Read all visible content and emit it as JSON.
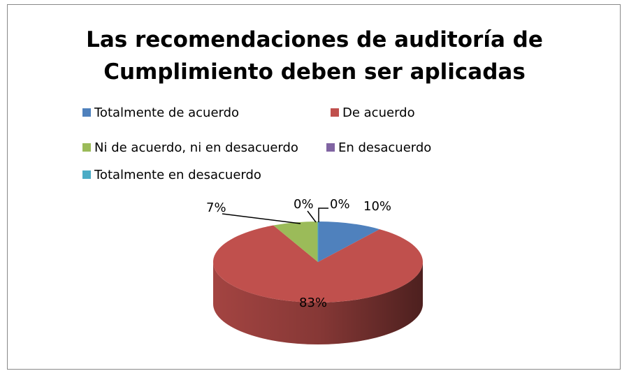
{
  "chart_data": {
    "type": "pie",
    "title": "Las recomendaciones de auditoría de Cumplimiento deben ser aplicadas",
    "categories": [
      "Totalmente de acuerdo",
      "De acuerdo",
      "Ni de acuerdo, ni en desacuerdo",
      "En desacuerdo",
      "Totalmente en desacuerdo"
    ],
    "values": [
      10,
      83,
      7,
      0,
      0
    ],
    "value_labels": [
      "10%",
      "83%",
      "7%",
      "0%",
      "0%"
    ],
    "colors": [
      "#4f81bd",
      "#c0504d",
      "#9bbb59",
      "#8064a2",
      "#4bacc6"
    ],
    "legend": "top"
  }
}
